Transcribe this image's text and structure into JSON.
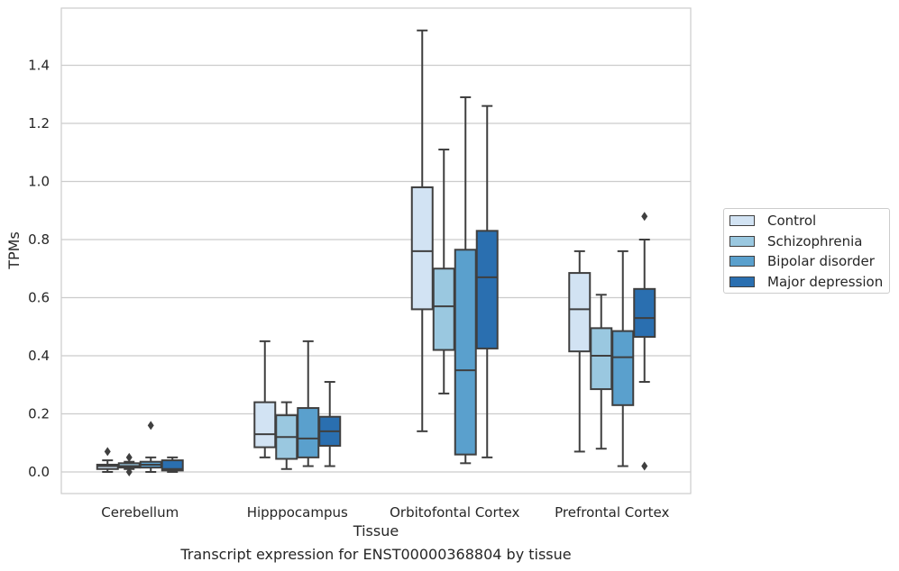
{
  "chart_data": {
    "type": "boxplot",
    "title": "",
    "caption": "Transcript expression for ENST00000368804 by tissue",
    "xlabel": "Tissue",
    "ylabel": "TPMs",
    "ylim": [
      -0.075,
      1.6
    ],
    "yticks": [
      "0.0",
      "0.2",
      "0.4",
      "0.6",
      "0.8",
      "1.0",
      "1.2",
      "1.4"
    ],
    "grid": "horizontal",
    "legend_position": "right",
    "categories": [
      "Cerebellum",
      "Hipppocampus",
      "Orbitofontal Cortex",
      "Prefrontal Cortex"
    ],
    "series": [
      {
        "name": "Control",
        "color": "#d2e3f3",
        "boxes": [
          {
            "whislo": 0.0,
            "q1": 0.01,
            "med": 0.02,
            "q3": 0.025,
            "whishi": 0.04,
            "fliers": [
              0.07
            ]
          },
          {
            "whislo": 0.05,
            "q1": 0.085,
            "med": 0.13,
            "q3": 0.24,
            "whishi": 0.45,
            "fliers": []
          },
          {
            "whislo": 0.14,
            "q1": 0.56,
            "med": 0.76,
            "q3": 0.98,
            "whishi": 1.52,
            "fliers": []
          },
          {
            "whislo": 0.07,
            "q1": 0.415,
            "med": 0.56,
            "q3": 0.685,
            "whishi": 0.76,
            "fliers": []
          }
        ]
      },
      {
        "name": "Schizophrenia",
        "color": "#9ac8e0",
        "boxes": [
          {
            "whislo": 0.01,
            "q1": 0.015,
            "med": 0.02,
            "q3": 0.03,
            "whishi": 0.035,
            "fliers": [
              0.05,
              0.0
            ]
          },
          {
            "whislo": 0.01,
            "q1": 0.045,
            "med": 0.12,
            "q3": 0.195,
            "whishi": 0.24,
            "fliers": []
          },
          {
            "whislo": 0.27,
            "q1": 0.42,
            "med": 0.57,
            "q3": 0.7,
            "whishi": 1.11,
            "fliers": []
          },
          {
            "whislo": 0.08,
            "q1": 0.285,
            "med": 0.4,
            "q3": 0.495,
            "whishi": 0.61,
            "fliers": []
          }
        ]
      },
      {
        "name": "Bipolar disorder",
        "color": "#5aa0cd",
        "boxes": [
          {
            "whislo": 0.0,
            "q1": 0.015,
            "med": 0.025,
            "q3": 0.035,
            "whishi": 0.05,
            "fliers": [
              0.16
            ]
          },
          {
            "whislo": 0.02,
            "q1": 0.05,
            "med": 0.115,
            "q3": 0.22,
            "whishi": 0.45,
            "fliers": []
          },
          {
            "whislo": 0.03,
            "q1": 0.06,
            "med": 0.35,
            "q3": 0.765,
            "whishi": 1.29,
            "fliers": []
          },
          {
            "whislo": 0.02,
            "q1": 0.23,
            "med": 0.395,
            "q3": 0.485,
            "whishi": 0.76,
            "fliers": []
          }
        ]
      },
      {
        "name": "Major depression",
        "color": "#2a6fb0",
        "boxes": [
          {
            "whislo": 0.0,
            "q1": 0.005,
            "med": 0.01,
            "q3": 0.04,
            "whishi": 0.05,
            "fliers": []
          },
          {
            "whislo": 0.02,
            "q1": 0.09,
            "med": 0.14,
            "q3": 0.19,
            "whishi": 0.31,
            "fliers": []
          },
          {
            "whislo": 0.05,
            "q1": 0.425,
            "med": 0.67,
            "q3": 0.83,
            "whishi": 1.26,
            "fliers": []
          },
          {
            "whislo": 0.31,
            "q1": 0.465,
            "med": 0.53,
            "q3": 0.63,
            "whishi": 0.8,
            "fliers": [
              0.88,
              0.02
            ]
          }
        ]
      }
    ]
  }
}
